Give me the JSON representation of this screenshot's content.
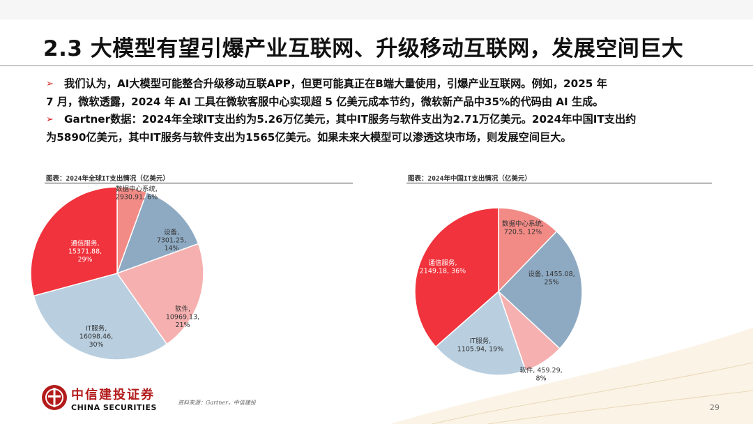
{
  "title": "2.3 大模型有望引爆产业互联网、升级移动互联网，发展空间巨大",
  "bullets": [
    {
      "lines": [
        "我们认为，AI大模型可能整合升级移动互联APP，但更可能真正在B端大量使用，引爆产业互联网。例如，2025 年",
        "7 月，微软透露，2024 年 AI 工具在微软客服中心实现超 5 亿美元成本节约，微软新产品中35%的代码由 AI 生成。"
      ]
    },
    {
      "lines": [
        "Gartner数据：2024年全球IT支出约为5.26万亿美元，其中IT服务与软件支出为2.71万亿美元。2024年中国IT支出约",
        "为5890亿美元，其中IT服务与软件支出为1565亿美元。如果未来大模型可以渗透这块市场，则发展空间巨大。"
      ]
    }
  ],
  "bullet_marker": "➢",
  "source": "资料来源：Gartner，中信建投",
  "page_number": "29",
  "logo": {
    "cn": "中信建投证券",
    "en": "CHINA SECURITIES"
  },
  "chart_data": [
    {
      "type": "pie",
      "title": "图表：2024年全球IT支出情况（亿美元）",
      "slices": [
        {
          "name": "数据中心系统",
          "value": 2930.91,
          "pct": 6,
          "color": "#f28b86",
          "label": [
            "数据中心系统,",
            "2930.91, 6%"
          ]
        },
        {
          "name": "设备",
          "value": 7301.25,
          "pct": 14,
          "color": "#8eaac3",
          "label": [
            "设备,",
            "7301.25,",
            "14%"
          ]
        },
        {
          "name": "软件",
          "value": 10969.13,
          "pct": 21,
          "color": "#f6b0b0",
          "label": [
            "软件,",
            "10969.13,",
            "21%"
          ]
        },
        {
          "name": "IT服务",
          "value": 16098.46,
          "pct": 30,
          "color": "#b9cfe0",
          "label": [
            "IT服务,",
            "16098.46,",
            "30%"
          ]
        },
        {
          "name": "通信服务",
          "value": 15371.88,
          "pct": 29,
          "color": "#f0333c",
          "label": [
            "通信服务,",
            "15371.88,",
            "29%"
          ]
        }
      ]
    },
    {
      "type": "pie",
      "title": "图表：2024年中国IT支出情况（亿美元）",
      "slices": [
        {
          "name": "数据中心系统",
          "value": 720.5,
          "pct": 12,
          "color": "#f28b86",
          "label": [
            "数据中心系统,",
            "720.5, 12%"
          ]
        },
        {
          "name": "设备",
          "value": 1455.08,
          "pct": 25,
          "color": "#8eaac3",
          "label": [
            "设备, 1455.08,",
            "25%"
          ]
        },
        {
          "name": "软件",
          "value": 459.29,
          "pct": 8,
          "color": "#f6b0b0",
          "label": [
            "软件, 459.29,",
            "8%"
          ]
        },
        {
          "name": "IT服务",
          "value": 1105.94,
          "pct": 19,
          "color": "#b9cfe0",
          "label": [
            "IT服务,",
            "1105.94, 19%"
          ]
        },
        {
          "name": "通信服务",
          "value": 2149.18,
          "pct": 36,
          "color": "#f0333c",
          "label": [
            "通信服务,",
            "2149.18, 36%"
          ]
        }
      ]
    }
  ]
}
